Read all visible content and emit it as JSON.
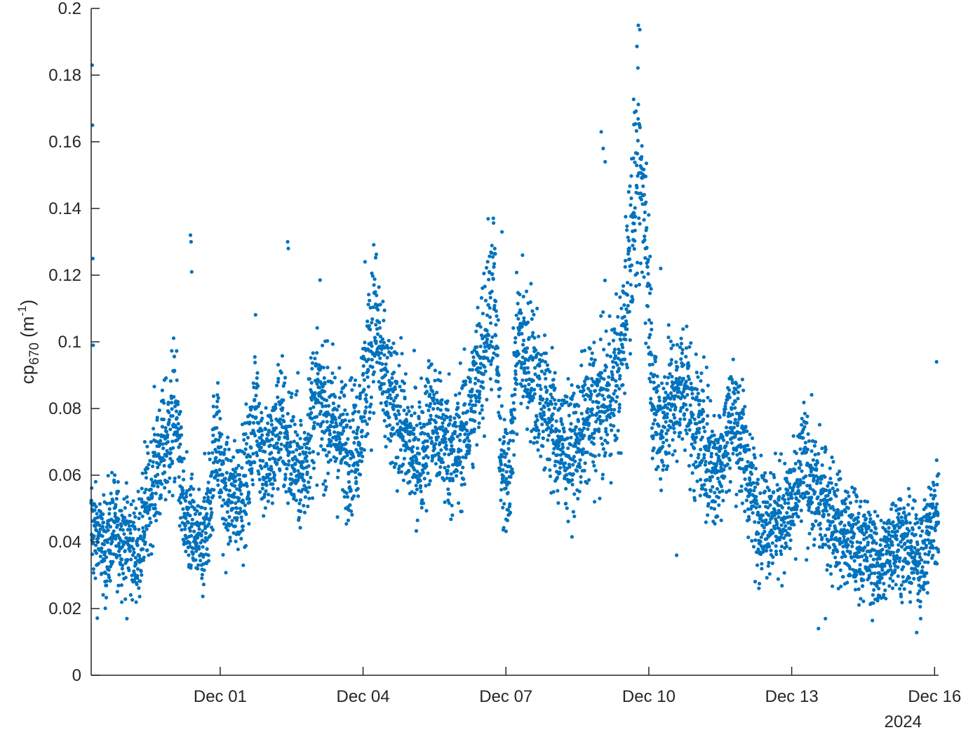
{
  "chart_data": {
    "type": "scatter",
    "title": "",
    "xlabel": "",
    "ylabel": {
      "base": "cp",
      "subscript": "670",
      "unit_open": " (m",
      "superscript": "-1",
      "unit_close": ")"
    },
    "x_axis": {
      "type": "time",
      "range": [
        "2024-11-28T07:00",
        "2024-12-16T02:00"
      ],
      "ticks": [
        {
          "date": "2024-12-01",
          "label": "Dec 01"
        },
        {
          "date": "2024-12-04",
          "label": "Dec 04"
        },
        {
          "date": "2024-12-07",
          "label": "Dec 07"
        },
        {
          "date": "2024-12-10",
          "label": "Dec 10"
        },
        {
          "date": "2024-12-13",
          "label": "Dec 13"
        },
        {
          "date": "2024-12-16",
          "label": "Dec 16"
        }
      ],
      "secondary_label": "2024"
    },
    "y_axis": {
      "ylim": [
        0,
        0.2
      ],
      "ticks": [
        {
          "value": 0,
          "label": "0"
        },
        {
          "value": 0.02,
          "label": "0.02"
        },
        {
          "value": 0.04,
          "label": "0.04"
        },
        {
          "value": 0.06,
          "label": "0.06"
        },
        {
          "value": 0.08,
          "label": "0.08"
        },
        {
          "value": 0.1,
          "label": "0.1"
        },
        {
          "value": 0.12,
          "label": "0.12"
        },
        {
          "value": 0.14,
          "label": "0.14"
        },
        {
          "value": 0.16,
          "label": "0.16"
        },
        {
          "value": 0.18,
          "label": "0.18"
        },
        {
          "value": 0.2,
          "label": "0.2"
        }
      ]
    },
    "grid": false,
    "marker_color": "#0072BD",
    "series": [
      {
        "x": [
          "2024-11-28T07:00",
          "2024-11-28T10:00",
          "2024-11-28T14:00",
          "2024-11-28T18:00",
          "2024-11-28T22:00",
          "2024-11-29T02:00",
          "2024-11-29T06:00",
          "2024-11-29T10:00",
          "2024-11-29T14:00",
          "2024-11-29T18:00",
          "2024-11-29T22:00",
          "2024-11-30T02:00",
          "2024-11-30T06:00",
          "2024-11-30T10:00",
          "2024-11-30T14:00",
          "2024-11-30T18:00",
          "2024-11-30T22:00",
          "2024-12-01T02:00",
          "2024-12-01T06:00",
          "2024-12-01T10:00",
          "2024-12-01T14:00",
          "2024-12-01T18:00",
          "2024-12-01T22:00",
          "2024-12-02T02:00",
          "2024-12-02T06:00",
          "2024-12-02T10:00",
          "2024-12-02T14:00",
          "2024-12-02T18:00",
          "2024-12-02T22:00",
          "2024-12-03T02:00",
          "2024-12-03T06:00",
          "2024-12-03T10:00",
          "2024-12-03T14:00",
          "2024-12-03T18:00",
          "2024-12-03T22:00",
          "2024-12-04T02:00",
          "2024-12-04T06:00",
          "2024-12-04T10:00",
          "2024-12-04T14:00",
          "2024-12-04T18:00",
          "2024-12-04T22:00",
          "2024-12-05T02:00",
          "2024-12-05T06:00",
          "2024-12-05T10:00",
          "2024-12-05T14:00",
          "2024-12-05T18:00",
          "2024-12-05T22:00",
          "2024-12-06T02:00",
          "2024-12-06T06:00",
          "2024-12-06T10:00",
          "2024-12-06T14:00",
          "2024-12-06T18:00",
          "2024-12-06T22:00",
          "2024-12-07T02:00",
          "2024-12-07T06:00",
          "2024-12-07T10:00",
          "2024-12-07T14:00",
          "2024-12-07T18:00",
          "2024-12-07T22:00",
          "2024-12-08T02:00",
          "2024-12-08T06:00",
          "2024-12-08T10:00",
          "2024-12-08T14:00",
          "2024-12-08T18:00",
          "2024-12-08T22:00",
          "2024-12-09T02:00",
          "2024-12-09T06:00",
          "2024-12-09T10:00",
          "2024-12-09T14:00",
          "2024-12-09T18:00",
          "2024-12-09T22:00",
          "2024-12-10T02:00",
          "2024-12-10T06:00",
          "2024-12-10T10:00",
          "2024-12-10T14:00",
          "2024-12-10T18:00",
          "2024-12-10T22:00",
          "2024-12-11T02:00",
          "2024-12-11T06:00",
          "2024-12-11T10:00",
          "2024-12-11T14:00",
          "2024-12-11T18:00",
          "2024-12-11T22:00",
          "2024-12-12T02:00",
          "2024-12-12T06:00",
          "2024-12-12T10:00",
          "2024-12-12T14:00",
          "2024-12-12T18:00",
          "2024-12-12T22:00",
          "2024-12-13T02:00",
          "2024-12-13T06:00",
          "2024-12-13T10:00",
          "2024-12-13T14:00",
          "2024-12-13T18:00",
          "2024-12-13T22:00",
          "2024-12-14T02:00",
          "2024-12-14T06:00",
          "2024-12-14T10:00",
          "2024-12-14T14:00",
          "2024-12-14T18:00",
          "2024-12-14T22:00",
          "2024-12-15T02:00",
          "2024-12-15T06:00",
          "2024-12-15T10:00",
          "2024-12-15T14:00",
          "2024-12-15T18:00",
          "2024-12-15T22:00",
          "2024-12-16T02:00"
        ],
        "y": [
          0.045,
          0.041,
          0.038,
          0.044,
          0.042,
          0.04,
          0.036,
          0.046,
          0.058,
          0.066,
          0.072,
          0.078,
          0.045,
          0.042,
          0.039,
          0.047,
          0.074,
          0.055,
          0.052,
          0.056,
          0.06,
          0.082,
          0.064,
          0.066,
          0.076,
          0.068,
          0.064,
          0.06,
          0.079,
          0.083,
          0.078,
          0.074,
          0.07,
          0.066,
          0.073,
          0.091,
          0.108,
          0.088,
          0.08,
          0.078,
          0.07,
          0.066,
          0.067,
          0.079,
          0.072,
          0.069,
          0.067,
          0.072,
          0.078,
          0.09,
          0.105,
          0.117,
          0.058,
          0.062,
          0.103,
          0.095,
          0.09,
          0.083,
          0.078,
          0.07,
          0.068,
          0.067,
          0.073,
          0.078,
          0.08,
          0.082,
          0.086,
          0.093,
          0.125,
          0.152,
          0.14,
          0.085,
          0.072,
          0.083,
          0.082,
          0.09,
          0.076,
          0.072,
          0.066,
          0.06,
          0.07,
          0.078,
          0.073,
          0.06,
          0.05,
          0.047,
          0.048,
          0.047,
          0.049,
          0.052,
          0.065,
          0.058,
          0.052,
          0.05,
          0.047,
          0.042,
          0.04,
          0.039,
          0.038,
          0.034,
          0.033,
          0.04,
          0.042,
          0.038,
          0.036,
          0.036,
          0.045,
          0.05
        ]
      }
    ],
    "outliers": {
      "x": [
        "2024-11-28T07:30",
        "2024-11-28T07:40",
        "2024-11-28T07:50",
        "2024-11-28T08:00",
        "2024-11-29T10:00",
        "2024-11-30T09:00",
        "2024-11-30T09:20",
        "2024-11-30T09:40",
        "2024-12-02T10:00",
        "2024-12-02T10:20",
        "2024-12-04T01:00",
        "2024-12-06T22:00",
        "2024-12-09T00:00",
        "2024-12-09T01:00",
        "2024-12-09T02:00",
        "2024-12-10T06:00",
        "2024-12-10T14:00",
        "2024-12-13T13:30",
        "2024-12-13T17:00",
        "2024-12-15T17:00",
        "2024-12-16T01:00",
        "2024-11-29T01:00"
      ],
      "y": [
        0.183,
        0.165,
        0.125,
        0.099,
        0.07,
        0.132,
        0.13,
        0.121,
        0.13,
        0.128,
        0.124,
        0.133,
        0.163,
        0.158,
        0.154,
        0.122,
        0.036,
        0.014,
        0.017,
        0.017,
        0.094,
        0.017
      ]
    }
  }
}
